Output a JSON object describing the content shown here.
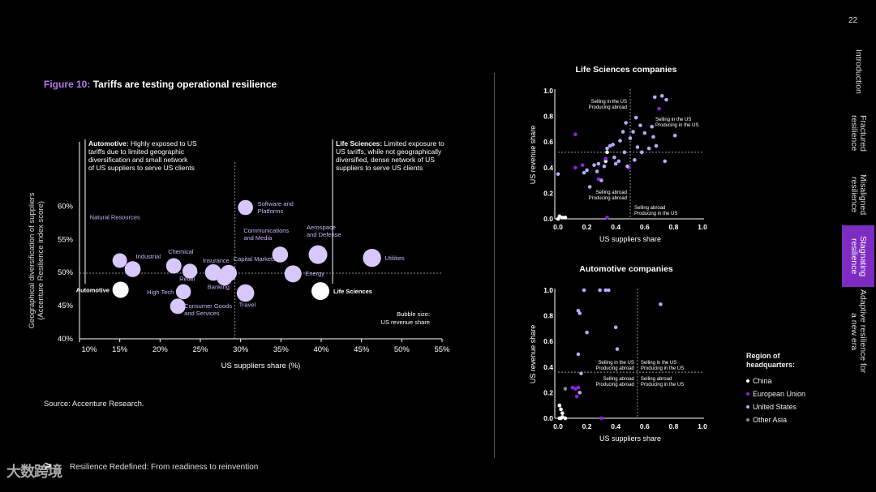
{
  "page_number": "22",
  "figure": {
    "label": "Figure 10:",
    "title": "Tariffs are testing operational resilience"
  },
  "source": "Source: Accenture Research.",
  "footer": {
    "text": "Resilience Redefined: From readiness to reinvention",
    "watermark": "大数跨境"
  },
  "nav": [
    {
      "label": "Introduction",
      "active": false
    },
    {
      "label": "Fractured resilience",
      "active": false
    },
    {
      "label": "Misaligned resilience",
      "active": false
    },
    {
      "label": "Stagnating resilience",
      "active": true
    },
    {
      "label": "Adaptive resilience for a new era",
      "active": false
    }
  ],
  "colors": {
    "accent": "#b67af0",
    "china": "#ffffff",
    "eu": "#8b21e0",
    "us": "#b8a8f8",
    "other_asia": "#888888",
    "bubble": "#d7c7fb"
  },
  "legend": {
    "title": "Region of headquarters:",
    "items": [
      {
        "label": "China",
        "key": "china"
      },
      {
        "label": "European Union",
        "key": "eu"
      },
      {
        "label": "United States",
        "key": "us"
      },
      {
        "label": "Other Asia",
        "key": "other_asia"
      }
    ]
  },
  "chart_data": [
    {
      "type": "scatter",
      "name": "industry-bubble",
      "xlabel": "US suppliers share (%)",
      "ylabel": "Geographical diversification of suppliers",
      "ylabel2": "(Accenture Resilience index score)",
      "xlim": [
        10,
        55
      ],
      "ylim": [
        40,
        62
      ],
      "x_ticks": [
        "10%",
        "15%",
        "20%",
        "25%",
        "30%",
        "35%",
        "40%",
        "45%",
        "50%",
        "55%"
      ],
      "y_ticks": [
        "40%",
        "45%",
        "50%",
        "55%",
        "60%"
      ],
      "x_tick_values": [
        10,
        15,
        20,
        25,
        30,
        35,
        40,
        45,
        50,
        55
      ],
      "y_tick_values": [
        40,
        45,
        50,
        55,
        60
      ],
      "ref_x": 29.3,
      "ref_y": 49.9,
      "bubble_note": [
        "Bubble size:",
        "US revenue share"
      ],
      "annotations": [
        {
          "bold": "Automotive:",
          "text": " Highly exposed to US",
          "lines": [
            "tariffs due to limited geographic",
            "diversification and small network",
            "of US suppliers to serve US clients"
          ]
        },
        {
          "bold": "Life Sciences:",
          "text": " Limited exposure to",
          "lines": [
            "US tariffs, while not geographically",
            "diversified, dense network of US",
            "suppliers to serve US clients"
          ]
        }
      ],
      "points": [
        {
          "label": "Automotive",
          "x": 15.1,
          "y": 47.4,
          "size": 0.4,
          "hl": true
        },
        {
          "label": "Life Sciences",
          "x": 39.9,
          "y": 47.2,
          "size": 0.5,
          "hl": true
        },
        {
          "label": "Natural Resources",
          "x": 15.0,
          "y": 51.8,
          "size": 0.3
        },
        {
          "label": "Industrial",
          "x": 16.6,
          "y": 50.5,
          "size": 0.38
        },
        {
          "label": "Chemical",
          "x": 21.7,
          "y": 51.0,
          "size": 0.35
        },
        {
          "label": "Retail",
          "x": 23.7,
          "y": 50.2,
          "size": 0.32
        },
        {
          "label": "High Tech",
          "x": 22.9,
          "y": 47.1,
          "size": 0.33
        },
        {
          "label": "Consumer Goods and Services",
          "x": 22.2,
          "y": 44.9,
          "size": 0.35
        },
        {
          "label": "Insurance",
          "x": 26.6,
          "y": 50.0,
          "size": 0.42
        },
        {
          "label": "Banking",
          "x": 28.0,
          "y": 49.2,
          "size": 0.36
        },
        {
          "label": "Capital Markets",
          "x": 28.5,
          "y": 49.9,
          "size": 0.42
        },
        {
          "label": "Travel",
          "x": 30.6,
          "y": 46.9,
          "size": 0.48
        },
        {
          "label": "Software and Platforms",
          "x": 30.6,
          "y": 59.8,
          "size": 0.33
        },
        {
          "label": "Communications and Media",
          "x": 34.9,
          "y": 52.7,
          "size": 0.38
        },
        {
          "label": "Energy",
          "x": 36.5,
          "y": 49.8,
          "size": 0.45
        },
        {
          "label": "Aerospace and Defense",
          "x": 39.6,
          "y": 52.7,
          "size": 0.55
        },
        {
          "label": "Utilities",
          "x": 46.3,
          "y": 52.2,
          "size": 0.52
        }
      ]
    },
    {
      "type": "scatter",
      "name": "life-sciences",
      "title": "Life Sciences companies",
      "xlabel": "US suppliers share",
      "ylabel": "US revenue share",
      "xlim": [
        0,
        1
      ],
      "ylim": [
        0,
        1
      ],
      "ticks": [
        "0.0",
        "0.2",
        "0.4",
        "0.6",
        "0.8",
        "1.0"
      ],
      "ref_x": 0.5,
      "ref_y": 0.52,
      "quadrants": [
        [
          "Selling in the US",
          "Producing abroad"
        ],
        [
          "Selling in the US",
          "Producing in the US"
        ],
        [
          "Selling abroad",
          "Producing abroad"
        ],
        [
          "Selling abroad",
          "Producing in the US"
        ]
      ],
      "points": [
        {
          "x": 0.01,
          "y": 0.02,
          "r": "china"
        },
        {
          "x": 0.03,
          "y": 0.01,
          "r": "china"
        },
        {
          "x": 0.05,
          "y": 0.01,
          "r": "china"
        },
        {
          "x": 0.0,
          "y": 0.0,
          "r": "china"
        },
        {
          "x": 0.33,
          "y": 0.45,
          "r": "china"
        },
        {
          "x": 0.34,
          "y": 0.52,
          "r": "china"
        },
        {
          "x": 0.12,
          "y": 0.66,
          "r": "eu"
        },
        {
          "x": 0.12,
          "y": 0.4,
          "r": "eu"
        },
        {
          "x": 0.17,
          "y": 0.42,
          "r": "eu"
        },
        {
          "x": 0.28,
          "y": 0.31,
          "r": "eu"
        },
        {
          "x": 0.33,
          "y": 0.47,
          "r": "eu"
        },
        {
          "x": 0.34,
          "y": 0.01,
          "r": "eu"
        },
        {
          "x": 0.49,
          "y": 0.4,
          "r": "eu"
        },
        {
          "x": 0.7,
          "y": 0.86,
          "r": "eu"
        },
        {
          "x": 0.0,
          "y": 0.35,
          "r": "us"
        },
        {
          "x": 0.18,
          "y": 0.36,
          "r": "us"
        },
        {
          "x": 0.2,
          "y": 0.38,
          "r": "us"
        },
        {
          "x": 0.22,
          "y": 0.25,
          "r": "us"
        },
        {
          "x": 0.25,
          "y": 0.42,
          "r": "us"
        },
        {
          "x": 0.27,
          "y": 0.37,
          "r": "us"
        },
        {
          "x": 0.28,
          "y": 0.43,
          "r": "us"
        },
        {
          "x": 0.3,
          "y": 0.3,
          "r": "us"
        },
        {
          "x": 0.32,
          "y": 0.41,
          "r": "us"
        },
        {
          "x": 0.34,
          "y": 0.55,
          "r": "us"
        },
        {
          "x": 0.36,
          "y": 0.57,
          "r": "us"
        },
        {
          "x": 0.38,
          "y": 0.58,
          "r": "us"
        },
        {
          "x": 0.39,
          "y": 0.48,
          "r": "us"
        },
        {
          "x": 0.4,
          "y": 0.43,
          "r": "us"
        },
        {
          "x": 0.42,
          "y": 0.45,
          "r": "us"
        },
        {
          "x": 0.43,
          "y": 0.61,
          "r": "us"
        },
        {
          "x": 0.45,
          "y": 0.68,
          "r": "us"
        },
        {
          "x": 0.46,
          "y": 0.52,
          "r": "us"
        },
        {
          "x": 0.47,
          "y": 0.75,
          "r": "us"
        },
        {
          "x": 0.48,
          "y": 0.41,
          "r": "us"
        },
        {
          "x": 0.5,
          "y": 0.63,
          "r": "us"
        },
        {
          "x": 0.52,
          "y": 0.68,
          "r": "us"
        },
        {
          "x": 0.53,
          "y": 0.46,
          "r": "us"
        },
        {
          "x": 0.54,
          "y": 0.79,
          "r": "us"
        },
        {
          "x": 0.55,
          "y": 0.56,
          "r": "us"
        },
        {
          "x": 0.57,
          "y": 0.73,
          "r": "us"
        },
        {
          "x": 0.58,
          "y": 0.52,
          "r": "us"
        },
        {
          "x": 0.6,
          "y": 0.67,
          "r": "us"
        },
        {
          "x": 0.63,
          "y": 0.55,
          "r": "us"
        },
        {
          "x": 0.65,
          "y": 0.72,
          "r": "us"
        },
        {
          "x": 0.66,
          "y": 0.64,
          "r": "us"
        },
        {
          "x": 0.67,
          "y": 0.95,
          "r": "us"
        },
        {
          "x": 0.68,
          "y": 0.57,
          "r": "us"
        },
        {
          "x": 0.72,
          "y": 0.96,
          "r": "us"
        },
        {
          "x": 0.75,
          "y": 0.93,
          "r": "us"
        },
        {
          "x": 0.74,
          "y": 0.45,
          "r": "us"
        },
        {
          "x": 0.81,
          "y": 0.65,
          "r": "us"
        }
      ]
    },
    {
      "type": "scatter",
      "name": "automotive",
      "title": "Automotive companies",
      "xlabel": "US suppliers share",
      "ylabel": "US revenue share",
      "xlim": [
        0,
        1
      ],
      "ylim": [
        0,
        1
      ],
      "ticks": [
        "0.0",
        "0.2",
        "0.4",
        "0.6",
        "0.8",
        "1.0"
      ],
      "ref_x": 0.55,
      "ref_y": 0.36,
      "quadrants": [
        [
          "Selling in the US",
          "Producing abroad"
        ],
        [
          "Selling in the US",
          "Producing in the US"
        ],
        [
          "Selling abroad",
          "Producing abroad"
        ],
        [
          "Selling abroad",
          "Producing in the US"
        ]
      ],
      "points": [
        {
          "x": 0.01,
          "y": 0.1,
          "r": "china"
        },
        {
          "x": 0.02,
          "y": 0.07,
          "r": "china"
        },
        {
          "x": 0.03,
          "y": 0.04,
          "r": "china"
        },
        {
          "x": 0.03,
          "y": 0.01,
          "r": "china"
        },
        {
          "x": 0.02,
          "y": 0.0,
          "r": "china"
        },
        {
          "x": 0.05,
          "y": 0.0,
          "r": "china"
        },
        {
          "x": 0.01,
          "y": 0.0,
          "r": "china"
        },
        {
          "x": 0.1,
          "y": 0.24,
          "r": "eu"
        },
        {
          "x": 0.12,
          "y": 0.23,
          "r": "eu"
        },
        {
          "x": 0.13,
          "y": 0.17,
          "r": "eu"
        },
        {
          "x": 0.14,
          "y": 0.24,
          "r": "eu"
        },
        {
          "x": 0.3,
          "y": 0.0,
          "r": "eu"
        },
        {
          "x": 0.14,
          "y": 0.5,
          "r": "us"
        },
        {
          "x": 0.15,
          "y": 0.2,
          "r": "us"
        },
        {
          "x": 0.16,
          "y": 0.35,
          "r": "us"
        },
        {
          "x": 0.18,
          "y": 1.0,
          "r": "us"
        },
        {
          "x": 0.14,
          "y": 0.84,
          "r": "us"
        },
        {
          "x": 0.15,
          "y": 0.82,
          "r": "us"
        },
        {
          "x": 0.2,
          "y": 0.67,
          "r": "us"
        },
        {
          "x": 0.29,
          "y": 1.0,
          "r": "us"
        },
        {
          "x": 0.33,
          "y": 1.0,
          "r": "us"
        },
        {
          "x": 0.35,
          "y": 1.0,
          "r": "us"
        },
        {
          "x": 0.4,
          "y": 0.71,
          "r": "us"
        },
        {
          "x": 0.41,
          "y": 0.54,
          "r": "us"
        },
        {
          "x": 0.71,
          "y": 0.89,
          "r": "us"
        },
        {
          "x": 0.05,
          "y": 0.23,
          "r": "other_asia"
        }
      ]
    }
  ]
}
